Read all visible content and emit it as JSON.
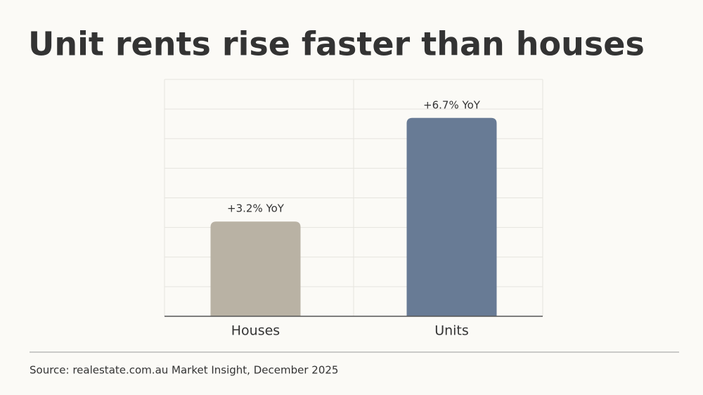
{
  "chart_data": {
    "type": "bar",
    "title": "Unit rents rise faster than houses",
    "categories": [
      "Houses",
      "Units"
    ],
    "values": [
      3.2,
      6.7
    ],
    "value_labels": [
      "+3.2% YoY",
      "+6.7% YoY"
    ],
    "colors": [
      "#b9b2a4",
      "#687b95"
    ],
    "ylim": [
      0,
      8
    ],
    "yticks": [
      0,
      1,
      2,
      3,
      4,
      5,
      6,
      7,
      8
    ],
    "grid": true,
    "source": "Source: realestate.com.au Market Insight, December 2025"
  }
}
